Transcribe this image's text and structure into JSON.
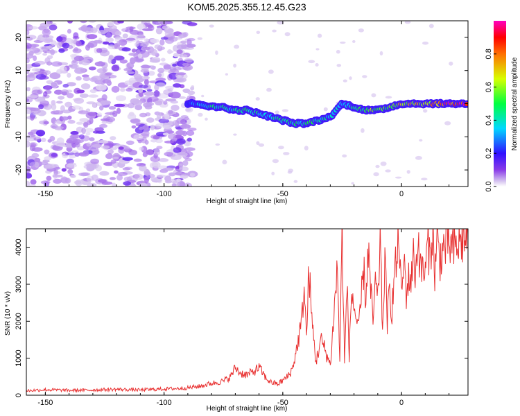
{
  "title": "KOM5.2025.355.12.45.G23",
  "chart_data": [
    {
      "type": "heatmap",
      "name": "spectrogram",
      "xlabel": "Height of straight line (km)",
      "ylabel": "Frequency (Hz)",
      "xlim": [
        -158,
        28
      ],
      "ylim": [
        -25,
        25
      ],
      "xticks": [
        -150,
        -100,
        -50,
        0
      ],
      "yticks": [
        -20,
        -10,
        0,
        10,
        20
      ],
      "colorbar": {
        "label": "Normalized spectral amplitude",
        "ticks": [
          "0.0",
          "0.2",
          "0.4",
          "0.6",
          "0.8"
        ],
        "range": [
          0,
          1
        ]
      },
      "ridge": {
        "x": [
          -90,
          -85,
          -80,
          -75,
          -70,
          -65,
          -60,
          -55,
          -50,
          -45,
          -40,
          -35,
          -30,
          -25,
          -20,
          -15,
          -10,
          -5,
          0,
          5,
          10,
          15,
          20,
          25,
          28
        ],
        "y": [
          0,
          0,
          -1,
          -1,
          -2,
          -2,
          -3,
          -4,
          -5,
          -6,
          -6,
          -5,
          -4,
          0,
          -1,
          -2,
          -2,
          -1,
          0,
          0,
          0,
          0,
          0,
          0,
          0
        ],
        "amplitude": [
          0.25,
          0.35,
          0.45,
          0.5,
          0.45,
          0.5,
          0.45,
          0.4,
          0.5,
          0.45,
          0.5,
          0.45,
          0.4,
          0.35,
          0.5,
          0.55,
          0.65,
          0.6,
          0.7,
          0.7,
          0.75,
          0.8,
          0.95,
          1.0,
          1.0
        ]
      }
    },
    {
      "type": "line",
      "name": "snr",
      "xlabel": "Height of straight line (km)",
      "ylabel": "SNR (10 * v/v)",
      "xlim": [
        -158,
        28
      ],
      "ylim": [
        0,
        4500
      ],
      "xticks": [
        -150,
        -100,
        -50,
        0
      ],
      "yticks": [
        0,
        1000,
        2000,
        3000,
        4000
      ],
      "color": "#e83030",
      "series": [
        {
          "name": "SNR",
          "x": [
            -158,
            -150,
            -140,
            -130,
            -120,
            -110,
            -100,
            -95,
            -90,
            -85,
            -80,
            -75,
            -72,
            -70,
            -68,
            -65,
            -62,
            -60,
            -57,
            -55,
            -52,
            -50,
            -48,
            -46,
            -44,
            -42,
            -41,
            -40,
            -39,
            -38,
            -36,
            -34,
            -32,
            -30,
            -28,
            -27,
            -26,
            -25,
            -24,
            -23,
            -22,
            -21,
            -20,
            -18,
            -16,
            -15,
            -14,
            -13,
            -12,
            -11,
            -10,
            -9,
            -8,
            -7,
            -6,
            -5,
            -4,
            -3,
            -2,
            -1,
            0,
            1,
            2,
            3,
            4,
            5,
            6,
            7,
            8,
            9,
            10,
            11,
            12,
            13,
            14,
            15,
            16,
            18,
            20,
            22,
            24,
            26,
            28
          ],
          "y": [
            120,
            150,
            130,
            140,
            160,
            140,
            170,
            180,
            200,
            240,
            320,
            380,
            500,
            750,
            600,
            550,
            650,
            750,
            450,
            350,
            300,
            400,
            500,
            700,
            1300,
            2000,
            3000,
            1500,
            3500,
            2200,
            900,
            1500,
            1200,
            800,
            2600,
            3500,
            900,
            4500,
            800,
            3000,
            1100,
            2800,
            2400,
            1700,
            3400,
            2600,
            4000,
            2800,
            2000,
            3000,
            2500,
            4300,
            1700,
            3700,
            2000,
            2800,
            2300,
            3300,
            3600,
            4400,
            2500,
            3700,
            2800,
            3100,
            3200,
            3700,
            3300,
            4400,
            3300,
            3500,
            3200,
            4200,
            3700,
            4500,
            3300,
            4200,
            3700,
            4000,
            4100,
            3900,
            4100,
            4200,
            4350
          ]
        }
      ]
    }
  ]
}
